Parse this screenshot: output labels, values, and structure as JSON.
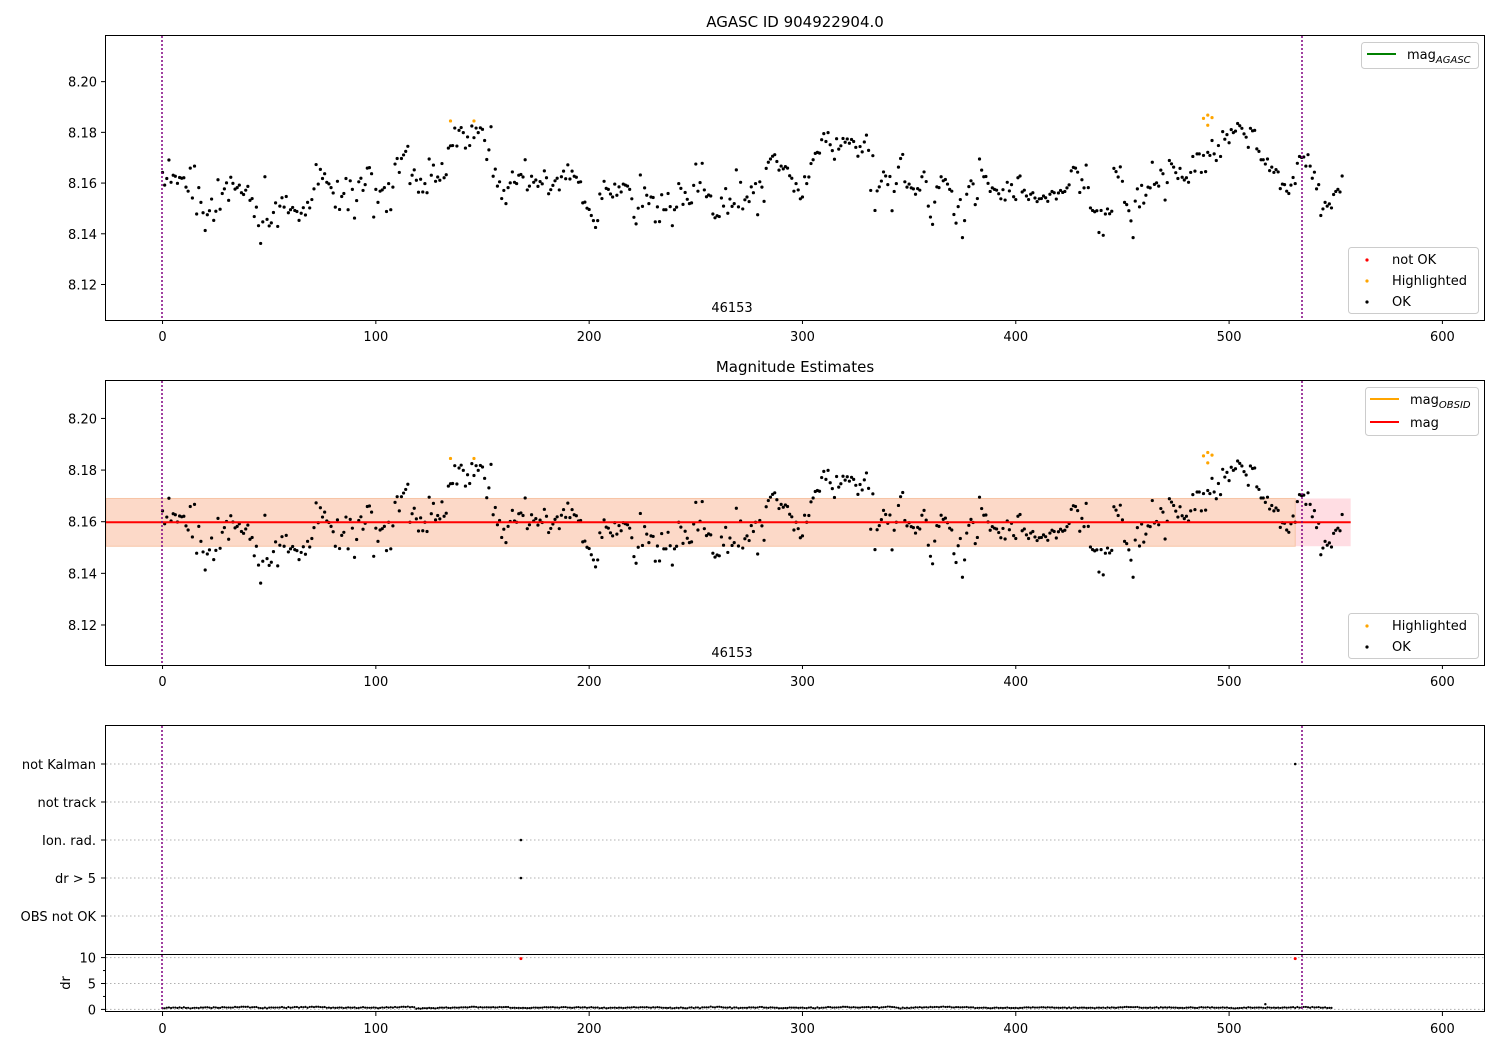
{
  "chart_data": [
    {
      "type": "scatter",
      "title": "AGASC ID 904922904.0",
      "xlim": [
        -26.5,
        619.5
      ],
      "ylim": [
        8.106,
        8.218
      ],
      "xticks": [
        0,
        100,
        200,
        300,
        400,
        500,
        600
      ],
      "yticks": [
        8.12,
        8.14,
        8.16,
        8.18,
        8.2
      ],
      "vlines": [
        0,
        531
      ],
      "annotation": {
        "text": "46153",
        "x": 265.5,
        "y": 8.106
      },
      "grid": false,
      "legend_upper": {
        "placement": "upper right",
        "entries": [
          {
            "label": "mag_AGASC",
            "color": "#008000",
            "kind": "line"
          }
        ]
      },
      "legend_lower": {
        "placement": "lower right",
        "entries": [
          {
            "label": "not OK",
            "color": "#ff0000",
            "kind": "point"
          },
          {
            "label": "Highlighted",
            "color": "#ffa500",
            "kind": "point"
          },
          {
            "label": "OK",
            "color": "#000000",
            "kind": "point"
          }
        ]
      },
      "series": [
        {
          "name": "OK",
          "color": "#000000",
          "source": "mag_seq"
        },
        {
          "name": "Highlighted",
          "color": "#ffa500",
          "points": [
            [
              135,
              8.1845
            ],
            [
              146,
              8.1845
            ],
            [
              488,
              8.1855
            ],
            [
              490,
              8.1868
            ],
            [
              492,
              8.1858
            ],
            [
              490,
              8.1828
            ]
          ]
        }
      ]
    },
    {
      "type": "scatter",
      "title": "Magnitude Estimates",
      "xlim": [
        -26.5,
        619.5
      ],
      "ylim": [
        8.1045,
        8.2145
      ],
      "xticks": [
        0,
        100,
        200,
        300,
        400,
        500,
        600
      ],
      "yticks": [
        8.12,
        8.14,
        8.16,
        8.18,
        8.2
      ],
      "vlines": [
        0,
        531
      ],
      "annotation": {
        "text": "46153",
        "x": 265.5,
        "y": 8.1045
      },
      "grid": false,
      "mag_line": {
        "y": 8.1598,
        "x": [
          -26.5,
          557
        ],
        "color": "#ff0000"
      },
      "band_outer": {
        "y": [
          8.1505,
          8.169
        ],
        "x": [
          -26.5,
          557
        ],
        "color": "#ffdde3"
      },
      "band_inner": {
        "y": [
          8.1505,
          8.169
        ],
        "x": [
          -26.5,
          531
        ],
        "color": "#fcd9c8"
      },
      "legend_upper": {
        "placement": "upper right",
        "entries": [
          {
            "label": "mag_OBSID",
            "color": "#ffa500",
            "kind": "line"
          },
          {
            "label": "mag",
            "color": "#ff0000",
            "kind": "line"
          }
        ]
      },
      "legend_lower": {
        "placement": "lower right",
        "entries": [
          {
            "label": "Highlighted",
            "color": "#ffa500",
            "kind": "point"
          },
          {
            "label": "OK",
            "color": "#000000",
            "kind": "point"
          }
        ]
      },
      "series": [
        {
          "name": "OK",
          "color": "#000000",
          "source": "mag_seq"
        },
        {
          "name": "Highlighted",
          "color": "#ffa500",
          "points": [
            [
              135,
              8.1845
            ],
            [
              146,
              8.1845
            ],
            [
              488,
              8.1855
            ],
            [
              490,
              8.1868
            ],
            [
              492,
              8.1858
            ],
            [
              490,
              8.1828
            ]
          ]
        }
      ]
    },
    {
      "type": "scatter",
      "title": "",
      "xlim": [
        -26.5,
        619.5
      ],
      "categories": [
        "not Kalman",
        "not track",
        "Ion. rad.",
        "dr > 5",
        "OBS not OK"
      ],
      "grid": "horizontal dotted",
      "vlines": [
        0,
        531
      ],
      "series": [
        {
          "category": "not Kalman",
          "color": "#000000",
          "points": [
            531
          ]
        },
        {
          "category": "Ion. rad.",
          "color": "#000000",
          "points": [
            168
          ]
        },
        {
          "category": "dr > 5",
          "color": "#000000",
          "points": [
            168
          ]
        }
      ]
    },
    {
      "type": "scatter",
      "ylabel": "dr",
      "xlim": [
        -26.5,
        619.5
      ],
      "ylim": [
        -0.5,
        10.5
      ],
      "xticks": [
        0,
        100,
        200,
        300,
        400,
        500,
        600
      ],
      "yticks": [
        0,
        5,
        10
      ],
      "vlines": [
        0,
        531
      ],
      "grid": "horizontal dotted",
      "series": [
        {
          "name": "dr",
          "color": "#000000",
          "source": "dr_seq"
        },
        {
          "name": "dr outliers",
          "color": "#ff0000",
          "points": [
            [
              168,
              9.8
            ],
            [
              531,
              9.8
            ]
          ]
        },
        {
          "name": "dr spike",
          "color": "#000000",
          "points": [
            [
              517,
              1.0
            ]
          ]
        }
      ]
    }
  ],
  "mag_seq": [
    8.1642,
    8.1592,
    8.1618,
    8.1691,
    8.1603,
    8.1631,
    8.1627,
    8.1599,
    8.1622,
    8.1619,
    8.1621,
    8.1584,
    8.1568,
    8.1659,
    8.1541,
    8.1667,
    8.1478,
    8.1582,
    8.1524,
    8.1483,
    8.1413,
    8.1475,
    8.1491,
    8.1537,
    8.1453,
    8.1489,
    8.1613,
    8.1497,
    8.1559,
    8.1577,
    8.1601,
    8.1532,
    8.1623,
    8.1599,
    8.1576,
    8.1582,
    8.1592,
    8.1562,
    8.1555,
    8.1572,
    8.1587,
    8.1532,
    8.1539,
    8.1468,
    8.1505,
    8.1432,
    8.1362,
    8.1447,
    8.1625,
    8.1457,
    8.1431,
    8.1443,
    8.1484,
    8.1522,
    8.1429,
    8.1509,
    8.1542,
    8.1505,
    8.1547,
    8.1483,
    8.1495,
    8.1504,
    8.1492,
    8.1488,
    8.1453,
    8.1481,
    8.1503,
    8.1474,
    8.1524,
    8.1502,
    8.1535,
    8.1577,
    8.1673,
    8.1596,
    8.1654,
    8.1618,
    8.1637,
    8.1603,
    8.1597,
    8.1582,
    8.1561,
    8.1505,
    8.1607,
    8.1496,
    8.1547,
    8.1559,
    8.1618,
    8.1495,
    8.1609,
    8.1575,
    8.1462,
    8.1531,
    8.1605,
    8.1619,
    8.1571,
    8.1594,
    8.1659,
    8.1661,
    8.1637,
    8.1466,
    8.1575,
    8.1524,
    8.1568,
    8.1573,
    8.1582,
    8.1488,
    8.1598,
    8.1495,
    8.1584,
    8.1675,
    8.1697,
    8.1642,
    8.1697,
    8.1711,
    8.1725,
    8.1745,
    8.1598,
    8.1631,
    8.1652,
    8.1611,
    8.1564,
    8.1615,
    8.1565,
    8.1598,
    8.1562,
    8.1695,
    8.1631,
    8.1671,
    8.1607,
    8.1624,
    8.1611,
    8.1677,
    8.1621,
    8.1633,
    8.1738,
    8.1747,
    8.1748,
    8.1817,
    8.1746,
    8.1808,
    8.1819,
    8.1799,
    8.1738,
    8.1782,
    8.1748,
    8.1825,
    8.1779,
    8.1817,
    8.1799,
    8.1818,
    8.1812,
    8.1768,
    8.1693,
    8.1731,
    8.1822,
    8.1627,
    8.1655,
    8.1588,
    8.1605,
    8.1539,
    8.1571,
    8.1519,
    8.1582,
    8.1601,
    8.1644,
    8.1603,
    8.1598,
    8.1631,
    8.1634,
    8.1624,
    8.1692,
    8.1573,
    8.1588,
    8.1627,
    8.1603,
    8.1612,
    8.1587,
    8.1606,
    8.1597,
    8.1648,
    8.1621,
    8.1558,
    8.1574,
    8.1591,
    8.1609,
    8.1619,
    8.1573,
    8.1625,
    8.1647,
    8.1617,
    8.1672,
    8.1616,
    8.1647,
    8.1627,
    8.1623,
    8.1603,
    8.1605,
    8.1522,
    8.1525,
    8.1501,
    8.1496,
    8.1472,
    8.1452,
    8.1425,
    8.1452,
    8.1557,
    8.1539,
    8.1607,
    8.1579,
    8.1575,
    8.1557,
    8.1545,
    8.1596,
    8.1552,
    8.1585,
    8.1565,
    8.1596,
    8.1592,
    8.1588,
    8.1575,
    8.1538,
    8.1465,
    8.1439,
    8.1501,
    8.1632,
    8.1508,
    8.1581,
    8.1552,
    8.1519,
    8.1545,
    8.1543,
    8.1447,
    8.1506,
    8.1448,
    8.1554,
    8.1495,
    8.1495,
    8.1559,
    8.1507,
    8.1432,
    8.1495,
    8.1505,
    8.1598,
    8.1579,
    8.1516,
    8.1563,
    8.1536,
    8.1519,
    8.1522,
    8.1591,
    8.1675,
    8.1568,
    8.1602,
    8.1678,
    8.1573,
    8.1546,
    8.1553,
    8.1549,
    8.1478,
    8.1463,
    8.1471,
    8.1468,
    8.1541,
    8.1509,
    8.1578,
    8.1481,
    8.1537,
    8.1508,
    8.1519,
    8.1652,
    8.1506,
    8.1603,
    8.1498,
    8.1534,
    8.1545,
    8.1527,
    8.1585,
    8.1562,
    8.1598,
    8.1475,
    8.1605,
    8.1584,
    8.1528,
    8.1658,
    8.1682,
    8.1695,
    8.1706,
    8.1712,
    8.1685,
    8.1651,
    8.1667,
    8.1656,
    8.1665,
    8.1659,
    8.1629,
    8.1619,
    8.1568,
    8.1598,
    8.1573,
    8.1538,
    8.1545,
    8.1625,
    8.1598,
    8.1624,
    8.1677,
    8.1692,
    8.1717,
    8.1721,
    8.1718,
    8.1771,
    8.1795,
    8.1764,
    8.1799,
    8.1751,
    8.1728,
    8.1694,
    8.1775,
    8.1734,
    8.1747,
    8.1776,
    8.1761,
    8.1774,
    8.1757,
    8.1772,
    8.1764,
    8.1741,
    8.1706,
    8.1744,
    8.1723,
    8.1762,
    8.1789,
    8.1729,
    8.1571,
    8.1708,
    8.1492,
    8.1569,
    8.1585,
    8.1608,
    8.1644,
    8.1628,
    8.1594,
    8.1626,
    8.1491,
    8.1567,
    8.1598,
    8.1663,
    8.1697,
    8.1713,
    8.1605,
    8.1584,
    8.1596,
    8.1581,
    8.1577,
    8.1556,
    8.1578,
    8.1572,
    8.1625,
    8.1644,
    8.1606,
    8.1509,
    8.1466,
    8.1437,
    8.1525,
    8.1585,
    8.1582,
    8.1625,
    8.1609,
    8.1614,
    8.1596,
    8.1575,
    8.1568,
    8.1476,
    8.1442,
    8.1507,
    8.1535,
    8.1385,
    8.1452,
    8.1556,
    8.1586,
    8.1609,
    8.1597,
    8.1515,
    8.1539,
    8.1695,
    8.1651,
    8.1625,
    8.1626,
    8.1599,
    8.1567,
    8.1581,
    8.1575,
    8.1572,
    8.1558,
    8.1538,
    8.1574,
    8.1533,
    8.1603,
    8.1569,
    8.1594,
    8.1546,
    8.1535,
    8.1621,
    8.1628,
    8.1565,
    8.1572,
    8.1549,
    8.1535,
    8.1556,
    8.1562,
    8.1541,
    8.1527,
    8.1538,
    8.1539,
    8.1549,
    8.1542,
    8.1528,
    8.1556,
    8.1567,
    8.1562,
    8.1537,
    8.1561,
    8.1571,
    8.1563,
    8.1567,
    8.1581,
    8.1593,
    8.1648,
    8.1662,
    8.1659,
    8.1643,
    8.1563,
    8.1613,
    8.1581,
    8.1671,
    8.1582,
    8.1502,
    8.1492,
    8.1487,
    8.1491,
    8.1405,
    8.1492,
    8.1394,
    8.1478,
    8.1498,
    8.1479,
    8.1489,
    8.1658,
    8.1645,
    8.1624,
    8.1664,
    8.1607,
    8.1524,
    8.1515,
    8.1491,
    8.1451,
    8.1385,
    8.1529,
    8.1577,
    8.1506,
    8.1591,
    8.1521,
    8.1552,
    8.1584,
    8.1581,
    8.1682,
    8.1595,
    8.1601,
    8.1588,
    8.1651,
    8.1637,
    8.1533,
    8.1602,
    8.1689,
    8.1676,
    8.1663,
    8.1641,
    8.1618,
    8.1658,
    8.1623,
    8.1612,
    8.1621,
    8.1603,
    8.1642,
    8.1705,
    8.1647,
    8.1715,
    8.1715,
    8.1642,
    8.1709,
    8.1645,
    8.1721,
    8.1709,
    8.1768,
    8.1715,
    8.1689,
    8.1748,
    8.1705,
    8.1803,
    8.1773,
    8.1791,
    8.1759,
    8.1811,
    8.1799,
    8.1805,
    8.1835,
    8.1826,
    8.1816,
    8.1794,
    8.1781,
    8.1741,
    8.1816,
    8.1806,
    8.1808,
    8.1735,
    8.1725,
    8.1692,
    8.1692,
    8.1675,
    8.1695,
    8.1649,
    8.1663,
    8.1642,
    8.1653,
    8.1644,
    8.1578,
    8.1596,
    8.1594,
    8.1568,
    8.1559,
    8.1592,
    8.1622,
    8.1598,
    8.1678,
    8.1705,
    8.1701,
    8.1703,
    8.1667,
    8.1712,
    8.1667,
    8.1619,
    8.1643,
    8.1577,
    8.1594,
    8.1472,
    8.1498,
    8.1524,
    8.1509,
    8.1518,
    8.1502,
    8.1555,
    8.1567,
    8.1575,
    8.1565,
    8.1628
  ],
  "dr_seq": [
    0.26,
    0.21,
    0.33,
    0.38,
    0.27,
    0.36,
    0.36,
    0.27,
    0.39,
    0.28,
    0.42,
    0.28,
    0.31,
    0.19,
    0.26,
    0.31,
    0.31,
    0.26,
    0.37,
    0.35,
    0.39,
    0.42,
    0.35,
    0.25,
    0.42,
    0.38,
    0.29,
    0.29,
    0.44,
    0.42,
    0.36,
    0.37,
    0.35,
    0.36,
    0.49,
    0.42,
    0.41,
    0.52,
    0.52,
    0.49,
    0.51,
    0.36,
    0.41,
    0.44,
    0.46,
    0.31,
    0.25,
    0.23,
    0.35,
    0.21,
    0.34,
    0.38,
    0.35,
    0.36,
    0.36,
    0.37,
    0.46,
    0.34,
    0.27,
    0.46,
    0.32,
    0.38,
    0.47,
    0.47,
    0.33,
    0.47,
    0.41,
    0.49,
    0.32,
    0.48,
    0.51,
    0.44,
    0.51,
    0.52,
    0.45,
    0.42,
    0.47,
    0.31,
    0.35,
    0.28,
    0.36,
    0.3,
    0.32,
    0.37,
    0.34,
    0.26,
    0.32,
    0.39,
    0.35,
    0.32,
    0.39,
    0.25,
    0.29,
    0.36,
    0.44,
    0.34,
    0.33,
    0.31,
    0.32,
    0.37,
    0.33,
    0.23,
    0.3,
    0.38,
    0.33,
    0.44,
    0.34,
    0.41,
    0.34,
    0.48,
    0.38,
    0.42,
    0.5,
    0.52,
    0.47,
    0.55,
    0.42,
    0.48,
    0.41,
    0.12,
    0.22,
    0.12,
    0.25,
    0.24,
    0.23,
    0.29,
    0.25,
    0.25,
    0.19,
    0.27,
    0.34,
    0.34,
    0.33,
    0.39,
    0.3,
    0.28,
    0.34,
    0.37,
    0.33,
    0.35,
    0.4,
    0.4,
    0.42,
    0.37,
    0.45,
    0.51,
    0.51,
    0.48,
    0.37,
    0.45,
    0.38,
    0.4,
    0.41,
    0.39,
    0.39,
    0.44,
    0.37,
    0.38,
    0.48,
    0.42,
    0.45,
    0.47,
    0.46,
    0.31,
    0.29,
    0.32,
    0.28,
    0.29,
    0.26,
    0.29,
    0.28,
    0.25,
    0.25,
    0.3,
    0.36,
    0.35,
    0.32,
    0.33,
    0.35,
    0.43,
    0.41,
    0.39,
    0.42,
    0.45,
    0.37,
    0.37,
    0.32,
    0.43,
    0.45,
    0.45,
    0.36,
    0.34,
    0.3,
    0.35,
    0.42,
    0.45,
    0.34,
    0.39,
    0.42,
    0.31,
    0.36,
    0.44,
    0.35,
    0.35,
    0.37,
    0.24,
    0.27,
    0.36,
    0.23,
    0.26,
    0.33,
    0.31,
    0.34,
    0.28,
    0.34,
    0.32,
    0.27,
    0.29,
    0.38,
    0.34,
    0.39,
    0.45,
    0.38,
    0.36,
    0.41,
    0.43,
    0.39,
    0.44,
    0.36,
    0.33,
    0.42,
    0.37,
    0.44,
    0.4,
    0.32,
    0.31,
    0.29,
    0.28,
    0.34,
    0.21,
    0.26,
    0.32,
    0.28,
    0.38,
    0.3,
    0.23,
    0.24,
    0.36,
    0.39,
    0.26,
    0.37,
    0.38,
    0.23,
    0.4,
    0.4,
    0.4,
    0.4,
    0.55,
    0.43,
    0.39,
    0.5,
    0.51,
    0.44,
    0.37,
    0.35,
    0.35,
    0.41,
    0.23,
    0.38,
    0.38,
    0.24,
    0.3,
    0.31,
    0.31,
    0.3,
    0.39,
    0.38,
    0.39,
    0.32,
    0.38,
    0.48,
    0.47,
    0.35,
    0.35,
    0.29,
    0.39,
    0.37,
    0.32,
    0.32,
    0.23,
    0.24,
    0.25,
    0.27,
    0.27,
    0.38,
    0.34,
    0.34,
    0.34,
    0.3,
    0.32,
    0.35,
    0.26,
    0.26,
    0.35,
    0.39,
    0.25,
    0.23,
    0.39,
    0.25,
    0.33,
    0.33,
    0.38,
    0.46,
    0.44,
    0.34,
    0.37,
    0.37,
    0.4,
    0.41,
    0.51,
    0.49,
    0.49,
    0.39,
    0.38,
    0.44,
    0.38,
    0.34,
    0.34,
    0.43,
    0.42,
    0.44,
    0.47,
    0.35,
    0.46,
    0.45,
    0.44,
    0.29,
    0.4,
    0.43,
    0.46,
    0.55,
    0.52,
    0.47,
    0.45,
    0.36,
    0.29,
    0.15,
    0.34,
    0.24,
    0.32,
    0.24,
    0.35,
    0.32,
    0.41,
    0.38,
    0.45,
    0.35,
    0.4,
    0.43,
    0.38,
    0.49,
    0.42,
    0.46,
    0.48,
    0.41,
    0.49,
    0.55,
    0.47,
    0.49,
    0.51,
    0.39,
    0.38,
    0.44,
    0.44,
    0.39,
    0.41,
    0.43,
    0.46,
    0.37,
    0.4,
    0.4,
    0.26,
    0.3,
    0.31,
    0.31,
    0.34,
    0.33,
    0.26,
    0.22,
    0.25,
    0.32,
    0.36,
    0.28,
    0.29,
    0.28,
    0.29,
    0.38,
    0.28,
    0.27,
    0.27,
    0.3,
    0.24,
    0.29,
    0.3,
    0.38,
    0.4,
    0.39,
    0.33,
    0.42,
    0.36,
    0.36,
    0.38,
    0.41,
    0.42,
    0.35,
    0.41,
    0.38,
    0.4,
    0.32,
    0.33,
    0.32,
    0.29,
    0.34,
    0.36,
    0.25,
    0.37,
    0.24,
    0.36,
    0.38,
    0.27,
    0.33,
    0.35,
    0.34,
    0.29,
    0.29,
    0.33,
    0.31,
    0.22,
    0.33,
    0.35,
    0.3,
    0.36,
    0.26,
    0.39,
    0.29,
    0.39,
    0.35,
    0.29,
    0.37,
    0.42,
    0.39,
    0.47,
    0.49,
    0.44,
    0.45,
    0.43,
    0.45,
    0.48,
    0.37,
    0.3,
    0.33,
    0.32,
    0.29,
    0.38,
    0.3,
    0.34,
    0.41,
    0.28,
    0.41,
    0.35,
    0.39,
    0.35,
    0.41,
    0.35,
    0.35,
    0.35,
    0.3,
    0.3,
    0.3,
    0.26,
    0.34,
    0.34,
    0.42,
    0.34,
    0.3,
    0.27,
    0.38,
    0.44,
    0.37,
    0.37,
    0.43,
    0.32,
    0.42,
    0.33,
    0.32,
    0.33,
    0.33,
    0.39,
    0.32,
    0.38,
    0.26,
    0.3,
    0.21,
    0.21,
    0.25,
    0.28,
    0.28,
    0.36,
    0.3,
    0.41,
    0.37,
    0.29,
    0.34,
    0.35,
    0.37,
    0.36,
    0.31,
    0.26,
    0.39,
    0.36,
    0.31,
    0.35,
    0.3,
    0.35,
    0.28,
    0.34,
    0.39,
    0.33,
    0.36,
    0.39,
    0.44,
    0.3,
    0.46,
    0.33,
    0.38,
    0.48,
    0.48,
    0.42,
    0.32,
    0.48,
    0.37,
    0.4,
    0.45,
    0.32,
    0.33,
    0.39,
    0.27,
    0.3,
    0.3
  ],
  "legend_labels": {
    "mag_agasc_base": "mag",
    "mag_agasc_sub": "AGASC",
    "mag_obsid_base": "mag",
    "mag_obsid_sub": "OBSID",
    "mag": "mag",
    "not_ok": "not OK",
    "highlighted": "Highlighted",
    "ok": "OK"
  },
  "panel_titles": {
    "top": "AGASC ID 904922904.0",
    "middle": "Magnitude Estimates"
  },
  "obsid_label": "46153",
  "y_tick_labels_mag": [
    "8.12",
    "8.14",
    "8.16",
    "8.18",
    "8.20"
  ],
  "x_tick_labels": [
    "0",
    "100",
    "200",
    "300",
    "400",
    "500",
    "600"
  ],
  "flag_labels": [
    "not Kalman",
    "not track",
    "Ion. rad.",
    "dr > 5",
    "OBS not OK"
  ],
  "dr_label": "dr",
  "dr_tick_labels": [
    "0",
    "5",
    "10"
  ]
}
